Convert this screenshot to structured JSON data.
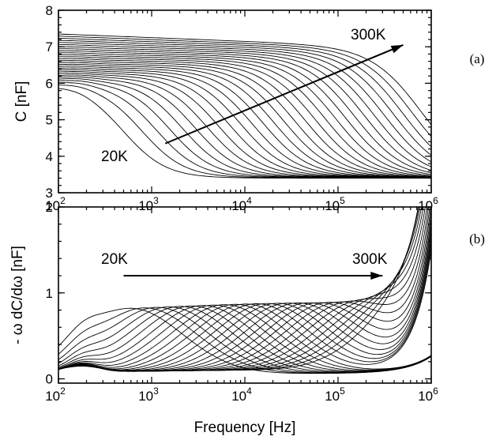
{
  "chart_data": [
    {
      "panel": "a",
      "type": "line",
      "panel_label": "(a)",
      "xlabel": "",
      "ylabel": "C  [nF]",
      "xscale": "log",
      "xlim": [
        100,
        1000000
      ],
      "ylim": [
        3,
        8
      ],
      "x_ticks": [
        {
          "value": 100,
          "base": "10",
          "exp": "2"
        },
        {
          "value": 1000,
          "base": "10",
          "exp": "3"
        },
        {
          "value": 10000,
          "base": "10",
          "exp": "4"
        },
        {
          "value": 100000,
          "base": "10",
          "exp": "5"
        },
        {
          "value": 1000000,
          "base": "10",
          "exp": "6"
        }
      ],
      "y_ticks": [
        "3",
        "4",
        "5",
        "6",
        "7",
        "8"
      ],
      "grid": false,
      "annotations": [
        {
          "text": "20K",
          "x": 100,
          "y": 3.95
        },
        {
          "text": "300K",
          "x": 50000,
          "y": 7.55
        }
      ],
      "arrow": {
        "from": [
          1400,
          4.35
        ],
        "to": [
          500000,
          7.05
        ]
      },
      "series_family": {
        "count": 28,
        "temperature_range": "20K to 300K",
        "low_frequency_capacitance_range": [
          5.95,
          7.35
        ],
        "high_frequency_capacitance_range": [
          3.4,
          4.6
        ],
        "relaxation_frequency_range_hz": [
          500,
          700000
        ]
      }
    },
    {
      "panel": "b",
      "type": "line",
      "panel_label": "(b)",
      "xlabel": "Frequency  [Hz]",
      "ylabel": "- ω dC/dω  [nF]",
      "xscale": "log",
      "xlim": [
        100,
        1000000
      ],
      "ylim": [
        -0.05,
        2
      ],
      "x_ticks": [
        {
          "value": 100,
          "base": "10",
          "exp": "2"
        },
        {
          "value": 1000,
          "base": "10",
          "exp": "3"
        },
        {
          "value": 10000,
          "base": "10",
          "exp": "4"
        },
        {
          "value": 100000,
          "base": "10",
          "exp": "5"
        },
        {
          "value": 1000000,
          "base": "10",
          "exp": "6"
        }
      ],
      "y_ticks": [
        "0",
        "1",
        "2"
      ],
      "grid": false,
      "annotations": [
        {
          "text": "20K",
          "x": 130,
          "y": 1.38
        },
        {
          "text": "300K",
          "x": 60000,
          "y": 1.38
        }
      ],
      "arrow": {
        "from": [
          500,
          1.2
        ],
        "to": [
          300000,
          1.2
        ]
      },
      "series_family": {
        "count": 28,
        "temperature_range": "20K to 300K",
        "peak_height_nf": [
          0.75,
          0.8
        ],
        "peak_frequency_range_hz": [
          600,
          700000
        ]
      }
    }
  ]
}
